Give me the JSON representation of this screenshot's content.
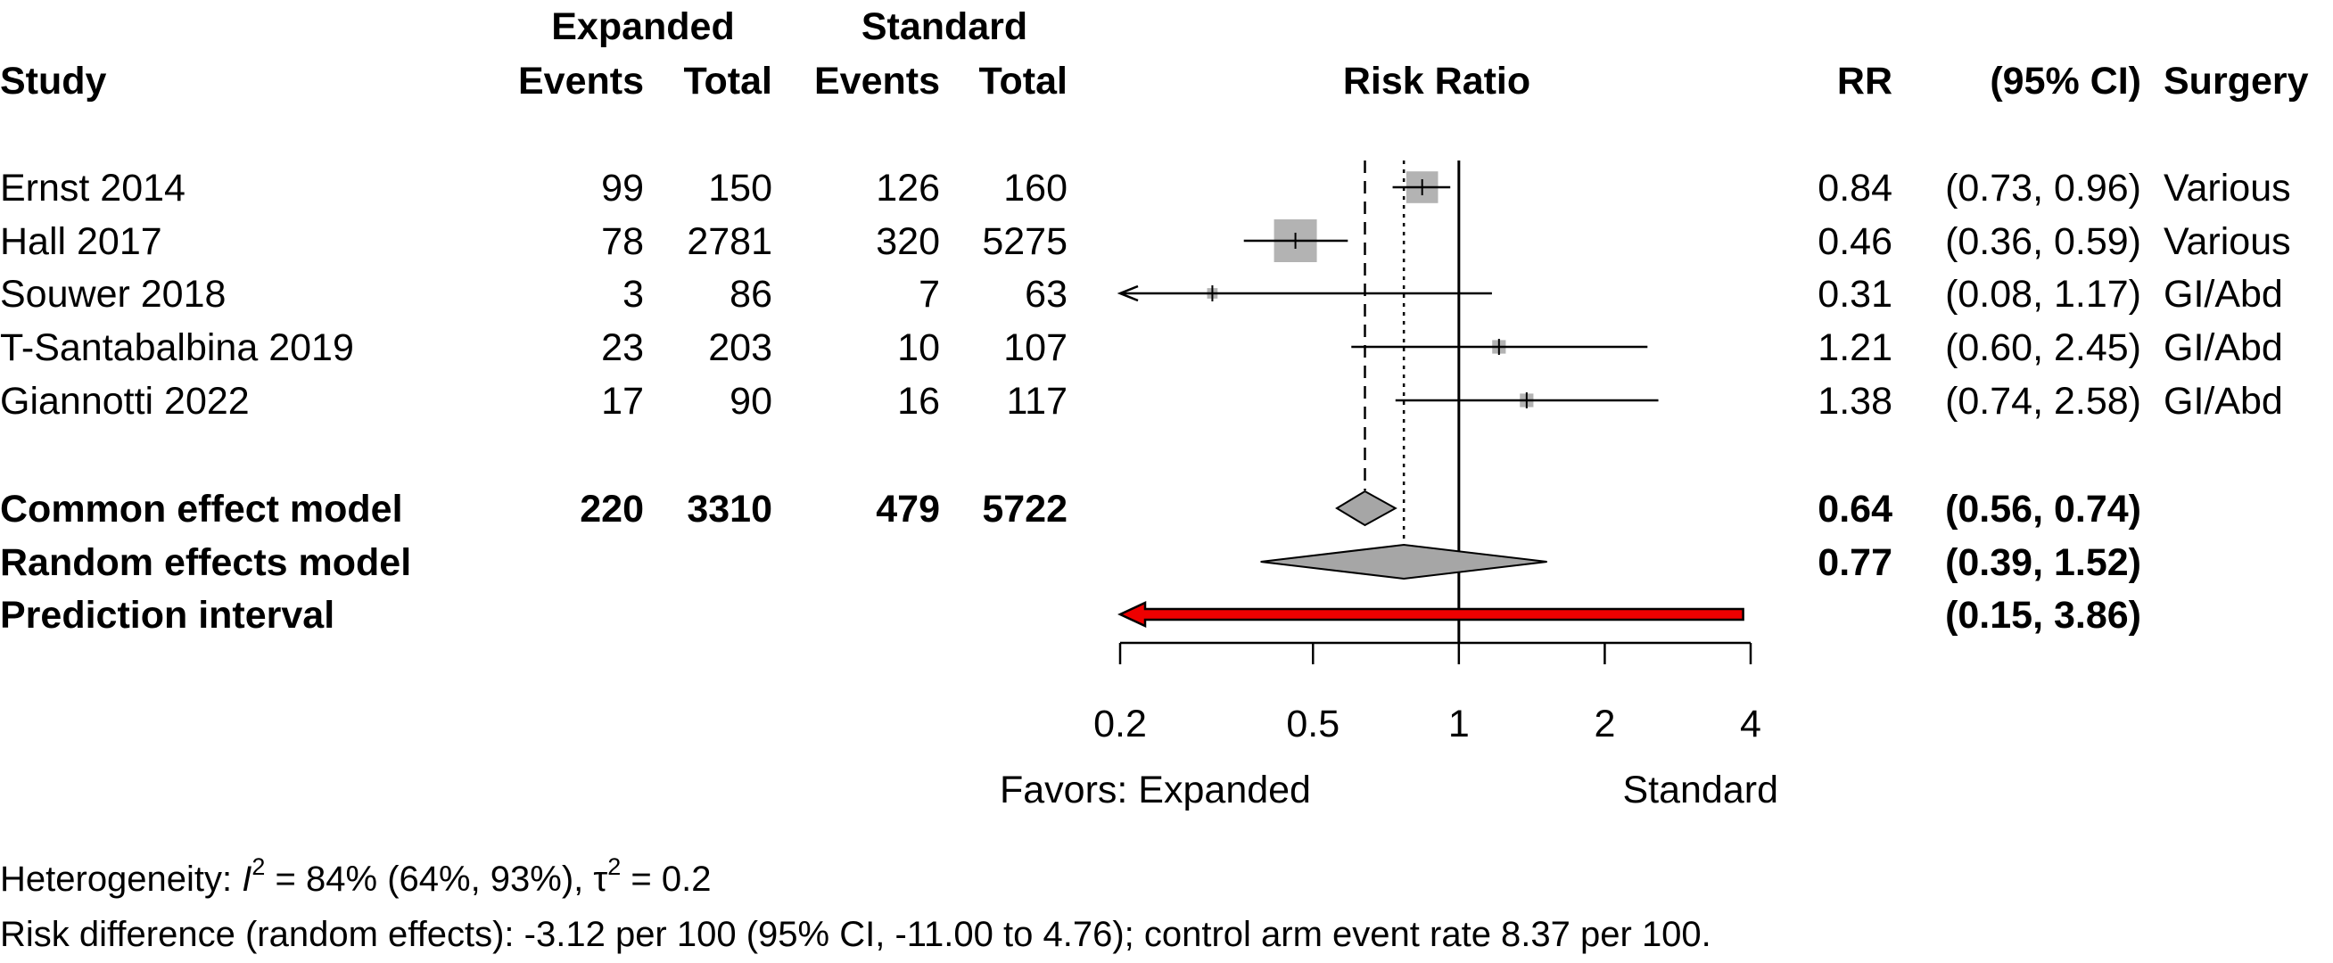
{
  "headers": {
    "study": "Study",
    "group1": "Expanded",
    "group2": "Standard",
    "events": "Events",
    "total": "Total",
    "plot": "Risk Ratio",
    "rr": "RR",
    "ci": "(95% CI)",
    "surgery": "Surgery"
  },
  "studies": [
    {
      "name": "Ernst 2014",
      "e1": "99",
      "n1": "150",
      "e2": "126",
      "n2": "160",
      "rr": "0.84",
      "ci": "(0.73, 0.96)",
      "surgery": "Various"
    },
    {
      "name": "Hall 2017",
      "e1": "78",
      "n1": "2781",
      "e2": "320",
      "n2": "5275",
      "rr": "0.46",
      "ci": "(0.36, 0.59)",
      "surgery": "Various"
    },
    {
      "name": "Souwer 2018",
      "e1": "3",
      "n1": "86",
      "e2": "7",
      "n2": "63",
      "rr": "0.31",
      "ci": "(0.08, 1.17)",
      "surgery": "GI/Abd"
    },
    {
      "name": "T-Santabalbina 2019",
      "e1": "23",
      "n1": "203",
      "e2": "10",
      "n2": "107",
      "rr": "1.21",
      "ci": "(0.60, 2.45)",
      "surgery": "GI/Abd"
    },
    {
      "name": "Giannotti 2022",
      "e1": "17",
      "n1": "90",
      "e2": "16",
      "n2": "117",
      "rr": "1.38",
      "ci": "(0.74, 2.58)",
      "surgery": "GI/Abd"
    }
  ],
  "summary": {
    "common": {
      "label": "Common effect model",
      "e1": "220",
      "n1": "3310",
      "e2": "479",
      "n2": "5722",
      "rr": "0.64",
      "ci": "(0.56, 0.74)"
    },
    "random": {
      "label": "Random effects model",
      "rr": "0.77",
      "ci": "(0.39, 1.52)"
    },
    "prediction": {
      "label": "Prediction interval",
      "ci": "(0.15, 3.86)"
    }
  },
  "axis": {
    "ticks": [
      "0.2",
      "0.5",
      "1",
      "2",
      "4"
    ],
    "favors_left": "Favors: Expanded",
    "favors_right": "Standard"
  },
  "footer": {
    "heterogeneity_prefix": "Heterogeneity: ",
    "i2_symbol": "I",
    "i2_value": " = 84% (64%, 93%), ",
    "tau_symbol": "τ",
    "tau_value": " = 0.2",
    "risk_difference": "Risk difference (random effects): -3.12 per 100 (95% CI, -11.00 to 4.76); control arm event rate 8.37 per 100."
  },
  "chart_data": {
    "type": "forest",
    "scale": "log",
    "xlim": [
      0.2,
      4
    ],
    "reference_line": 1,
    "ticks": [
      0.2,
      0.5,
      1,
      2,
      4
    ],
    "studies": [
      {
        "label": "Ernst 2014",
        "rr": 0.84,
        "lower": 0.73,
        "upper": 0.96,
        "weight": 0.55
      },
      {
        "label": "Hall 2017",
        "rr": 0.46,
        "lower": 0.36,
        "upper": 0.59,
        "weight": 1.0
      },
      {
        "label": "Souwer 2018",
        "rr": 0.31,
        "lower": 0.08,
        "upper": 1.17,
        "weight": 0.06
      },
      {
        "label": "T-Santabalbina 2019",
        "rr": 1.21,
        "lower": 0.6,
        "upper": 2.45,
        "weight": 0.1
      },
      {
        "label": "Giannotti 2022",
        "rr": 1.38,
        "lower": 0.74,
        "upper": 2.58,
        "weight": 0.1
      }
    ],
    "common_effect": {
      "rr": 0.64,
      "lower": 0.56,
      "upper": 0.74
    },
    "random_effects": {
      "rr": 0.77,
      "lower": 0.39,
      "upper": 1.52
    },
    "prediction_interval": {
      "lower": 0.15,
      "upper": 3.86
    },
    "colors": {
      "square": "#b3b3b3",
      "diamond": "#a6a6a6",
      "prediction": "#ee0000"
    }
  }
}
